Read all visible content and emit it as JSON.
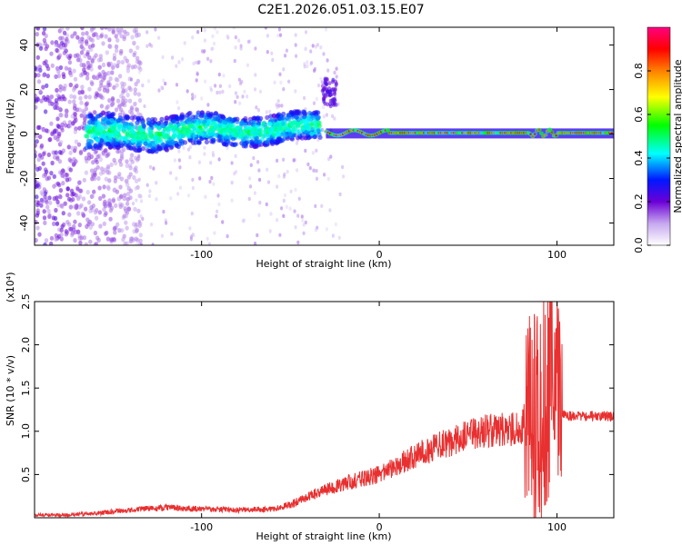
{
  "title": "C2E1.2026.051.03.15.E07",
  "chart_data": [
    {
      "type": "heatmap",
      "name": "spectrogram",
      "xlabel": "Height of straight line (km)",
      "ylabel": "Frequency (Hz)",
      "xlim": [
        -194,
        132
      ],
      "ylim": [
        -50,
        48
      ],
      "xticks": [
        -100,
        0,
        100
      ],
      "xtick_labels": [
        "-100",
        "0",
        "100"
      ],
      "yticks": [
        -40,
        -20,
        0,
        20,
        40
      ],
      "ytick_labels": [
        "-40",
        "-20",
        "0",
        "20",
        "40"
      ],
      "grid": false,
      "colorbar": {
        "label": "Normalized spectral amplitude",
        "range": [
          0,
          1
        ],
        "ticks": [
          0,
          0.2,
          0.4,
          0.6,
          0.8
        ],
        "tick_labels": [
          "0.0",
          "0.2",
          "0.4",
          "0.6",
          "0.8"
        ]
      },
      "features": [
        {
          "x_range": [
            -194,
            -140
          ],
          "freq_range": [
            -50,
            48
          ],
          "amplitude": 0.15,
          "description": "broadband noise"
        },
        {
          "x_range": [
            -165,
            -35
          ],
          "freq_center": 0,
          "freq_halfwidth": 8,
          "amplitude": 0.3
        },
        {
          "x_range": [
            -30,
            130
          ],
          "freq_center": 0.5,
          "freq_halfwidth": 2,
          "amplitude": 0.95
        },
        {
          "x_range": [
            -32,
            -24
          ],
          "freq_range": [
            15,
            25
          ],
          "amplitude": 0.2
        }
      ]
    },
    {
      "type": "line",
      "name": "snr",
      "xlabel": "Height of straight line (km)",
      "ylabel": "SNR (10 * v/v)",
      "yscale_label": "(x10⁴)",
      "xlim": [
        -194,
        132
      ],
      "ylim": [
        0,
        2.5
      ],
      "xticks": [
        -100,
        0,
        100
      ],
      "xtick_labels": [
        "-100",
        "0",
        "100"
      ],
      "yticks": [
        0.5,
        1.0,
        1.5,
        2.0,
        2.5
      ],
      "ytick_labels": [
        "0.5",
        "1.0",
        "1.5",
        "2.0",
        "2.5"
      ],
      "grid": false,
      "color": "#e83030",
      "series": [
        {
          "name": "SNR",
          "x": [
            -194,
            -180,
            -160,
            -140,
            -120,
            -100,
            -80,
            -60,
            -50,
            -40,
            -30,
            -20,
            -10,
            0,
            10,
            20,
            30,
            40,
            50,
            60,
            70,
            80,
            85,
            90,
            95,
            98,
            100,
            103,
            110,
            120,
            132
          ],
          "y": [
            0.03,
            0.03,
            0.05,
            0.09,
            0.12,
            0.1,
            0.09,
            0.1,
            0.15,
            0.25,
            0.32,
            0.4,
            0.45,
            0.5,
            0.6,
            0.72,
            0.8,
            0.88,
            0.95,
            1.0,
            1.02,
            1.02,
            1.3,
            1.1,
            1.5,
            2.3,
            1.5,
            1.2,
            1.16,
            1.18,
            1.17
          ]
        }
      ]
    }
  ]
}
